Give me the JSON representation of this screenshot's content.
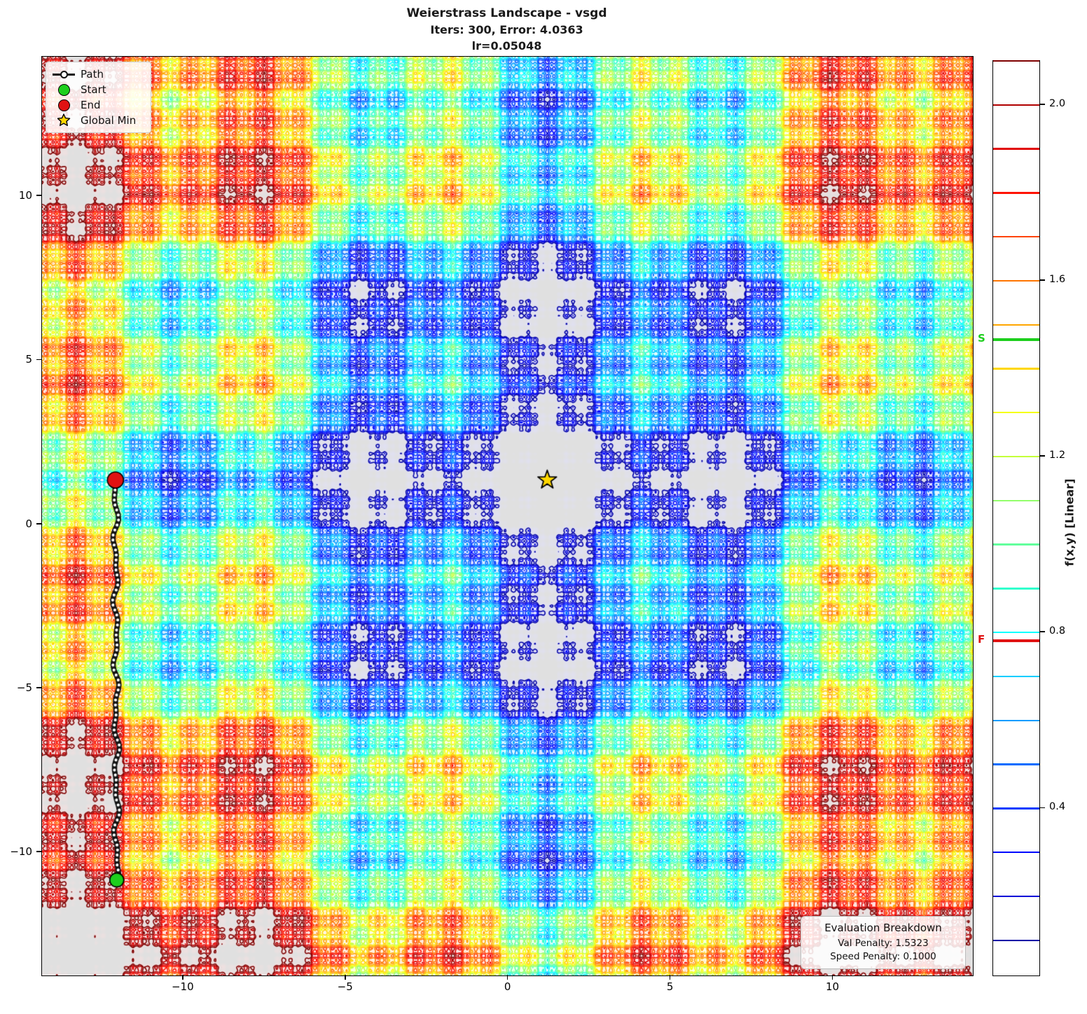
{
  "figure": {
    "title_lines": [
      "Weierstrass Landscape - vsgd",
      "Iters: 300, Error: 4.0363",
      "lr=0.05048"
    ]
  },
  "chart_data": {
    "type": "contour",
    "title": "Weierstrass Landscape - vsgd",
    "subtitle": "Iters: 300, Error: 4.0363, lr=0.05048",
    "xlabel": "",
    "ylabel": "",
    "x_range": [
      -14.35,
      14.3
    ],
    "y_range": [
      -13.75,
      14.25
    ],
    "z_range": [
      0.02,
      2.1
    ],
    "x_ticks": [
      "−10",
      "−5",
      "0",
      "5",
      "10"
    ],
    "x_tick_values": [
      -10,
      -5,
      0,
      5,
      10
    ],
    "y_ticks": [
      "10",
      "5",
      "0",
      "−5",
      "−10"
    ],
    "y_tick_values": [
      10,
      5,
      0,
      -5,
      -10
    ],
    "grid": false,
    "colormap": "jet",
    "fill_alpha": 0.12,
    "contour_levels": {
      "start": 0.1,
      "step": 0.1,
      "count": 21
    },
    "surface": {
      "generator": "weierstrass2d",
      "amplitude_ratio": 0.55,
      "frequency_ratio": 5,
      "octaves": 4,
      "period": 29,
      "minimum_at": [
        1.2,
        1.35
      ]
    },
    "path": {
      "label": "Path",
      "start": [
        -12.05,
        -10.84
      ],
      "end": [
        -12.09,
        1.35
      ],
      "points": 80,
      "color": "#111111",
      "marker_face": "#ffffff"
    },
    "markers": {
      "start": {
        "label": "Start",
        "xy": [
          -12.05,
          -10.84
        ],
        "color": "#1dcf1d",
        "shape": "circle"
      },
      "end": {
        "label": "End",
        "xy": [
          -12.09,
          1.35
        ],
        "color": "#e01212",
        "shape": "circle"
      },
      "global_min": {
        "label": "Global Min",
        "xy": [
          1.2,
          1.35
        ],
        "color": "#ffd700",
        "shape": "star"
      }
    },
    "colorbar": {
      "label": "f(x,y) [Linear]",
      "tick_values": [
        2.0,
        1.6,
        1.2,
        0.8,
        0.4
      ],
      "tick_labels": [
        "2.0",
        "1.6",
        "1.2",
        "0.8",
        "0.4"
      ],
      "range": [
        0.02,
        2.1
      ],
      "start_marker": {
        "label": "S",
        "value": 1.466,
        "color": "#1dcf1d"
      },
      "final_marker": {
        "label": "F",
        "value": 0.781,
        "color": "#e01212"
      }
    }
  },
  "legend": {
    "items": [
      {
        "label": "Path"
      },
      {
        "label": "Start"
      },
      {
        "label": "End"
      },
      {
        "label": "Global Min"
      }
    ]
  },
  "eval_box": {
    "title": "Evaluation Breakdown",
    "lines": [
      "Val Penalty: 1.5323",
      "Speed Penalty: 0.1000"
    ]
  }
}
